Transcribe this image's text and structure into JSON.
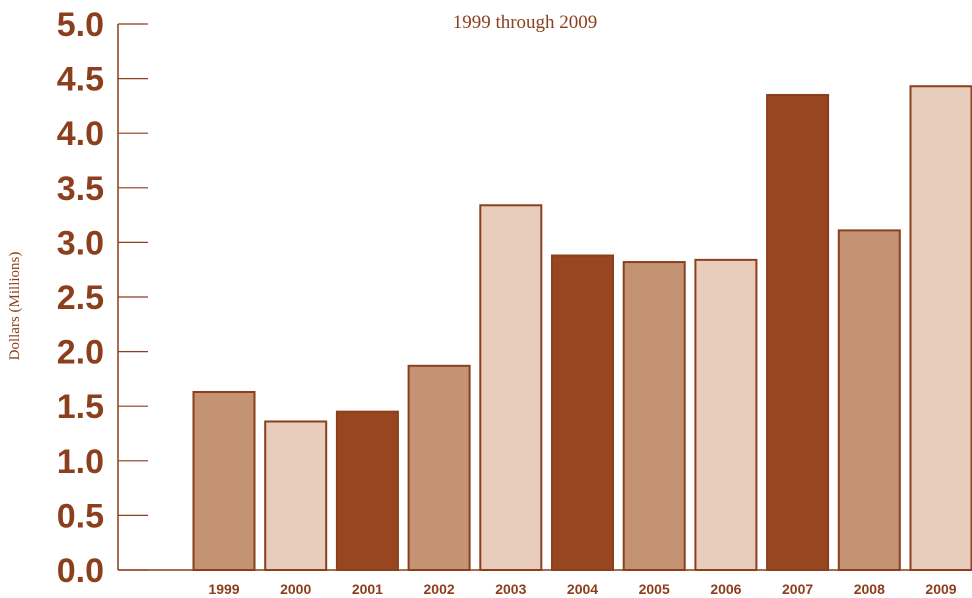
{
  "chart_data": {
    "type": "bar",
    "title": "",
    "subtitle": "1999 through 2009",
    "ylabel": "Dollars (Millions)",
    "xlabel": "",
    "categories": [
      "1999",
      "2000",
      "2001",
      "2002",
      "2003",
      "2004",
      "2005",
      "2006",
      "2007",
      "2008",
      "2009"
    ],
    "values": [
      1.63,
      1.36,
      1.45,
      1.87,
      3.34,
      2.88,
      2.82,
      2.84,
      4.35,
      3.11,
      4.43
    ],
    "bar_colors": [
      "#c39374",
      "#e8cdbd",
      "#98461f",
      "#c39374",
      "#e8cdbd",
      "#98461f",
      "#c39374",
      "#e8cdbd",
      "#98461f",
      "#c39374",
      "#e8cdbd"
    ],
    "ylim": [
      0,
      5
    ],
    "yticks": [
      "0.0",
      "0.5",
      "1.0",
      "1.5",
      "2.0",
      "2.5",
      "3.0",
      "3.5",
      "4.0",
      "4.5",
      "5.0"
    ],
    "grid": false,
    "legend": "none",
    "colors": {
      "text": "#8b3f1c",
      "axis": "#8b3f1c",
      "bar_border": "#8b3f1c"
    }
  }
}
